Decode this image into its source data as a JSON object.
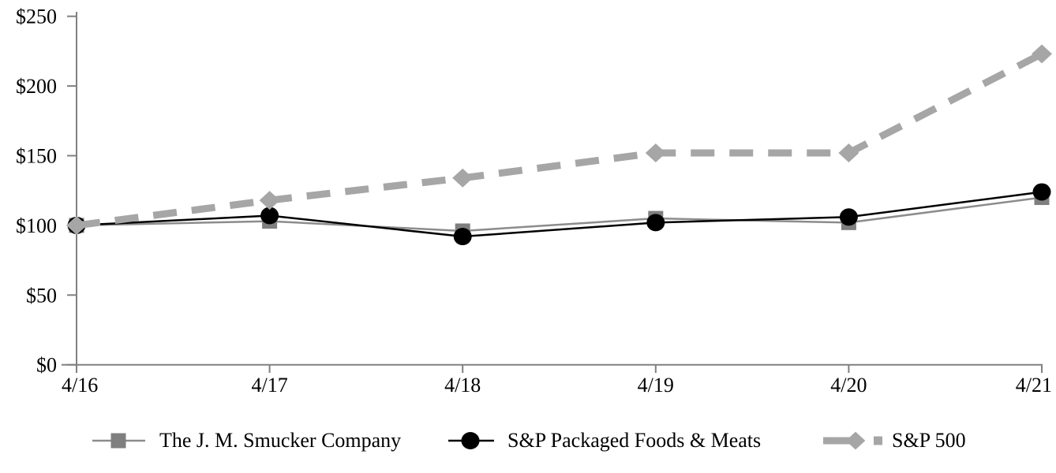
{
  "chart_data": {
    "type": "line",
    "title": "",
    "xlabel": "",
    "ylabel": "",
    "grid": false,
    "legend_position": "bottom",
    "background_color": "#ffffff",
    "axis_color": "#808080",
    "text_color": "#000000",
    "categories": [
      "4/16",
      "4/17",
      "4/18",
      "4/19",
      "4/20",
      "4/21"
    ],
    "y_axis": {
      "min": 0,
      "max": 250,
      "tick_values": [
        0,
        50,
        100,
        150,
        200,
        250
      ],
      "tick_labels": [
        "$0",
        "$50",
        "$100",
        "$150",
        "$200",
        "$250"
      ]
    },
    "series": [
      {
        "name": "The J. M. Smucker Company",
        "marker": "square",
        "line_style": "solid",
        "line_width": 2.5,
        "color": "#8c8c8c",
        "marker_color": "#7f7f7f",
        "values": [
          100,
          103,
          96,
          105,
          102,
          120
        ]
      },
      {
        "name": "S&P Packaged Foods & Meats",
        "marker": "circle",
        "line_style": "solid",
        "line_width": 2.5,
        "color": "#000000",
        "marker_color": "#000000",
        "values": [
          100,
          107,
          92,
          102,
          106,
          124
        ]
      },
      {
        "name": "S&P 500",
        "marker": "diamond",
        "line_style": "dashed",
        "line_width": 9,
        "color": "#a6a6a6",
        "marker_color": "#a6a6a6",
        "values": [
          100,
          118,
          134,
          152,
          152,
          223
        ]
      }
    ]
  }
}
